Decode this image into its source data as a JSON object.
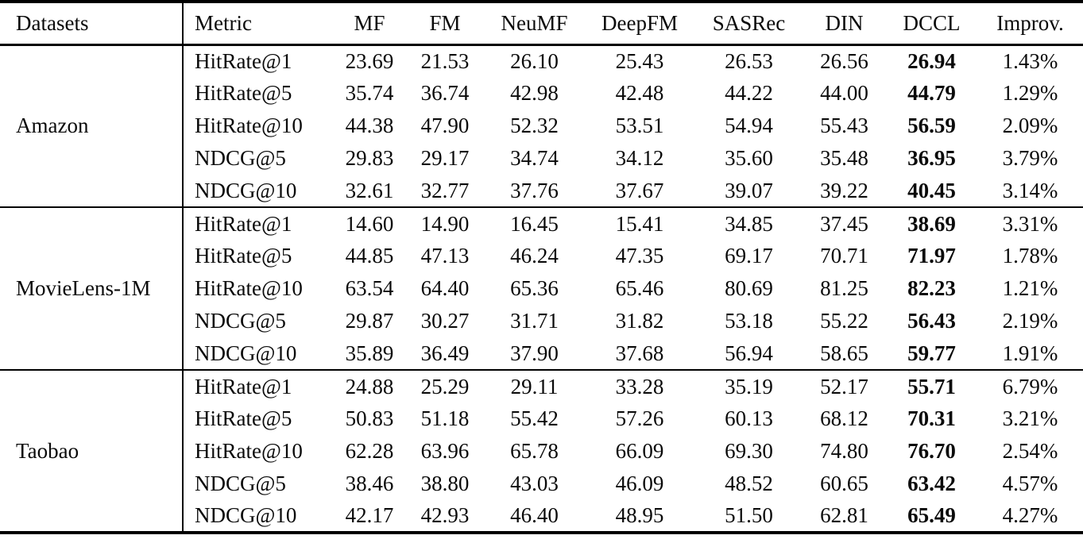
{
  "page": {
    "background_color": "#ffffff",
    "text_color": "#0a0a0a",
    "rule_color": "#000000"
  },
  "table": {
    "columns": [
      "Datasets",
      "Metric",
      "MF",
      "FM",
      "NeuMF",
      "DeepFM",
      "SASRec",
      "DIN",
      "DCCL",
      "Improv."
    ],
    "bold_column": "DCCL",
    "groups": [
      {
        "dataset": "Amazon",
        "rows": [
          {
            "metric": "HitRate@1",
            "values": [
              "23.69",
              "21.53",
              "26.10",
              "25.43",
              "26.53",
              "26.56",
              "26.94",
              "1.43%"
            ]
          },
          {
            "metric": "HitRate@5",
            "values": [
              "35.74",
              "36.74",
              "42.98",
              "42.48",
              "44.22",
              "44.00",
              "44.79",
              "1.29%"
            ]
          },
          {
            "metric": "HitRate@10",
            "values": [
              "44.38",
              "47.90",
              "52.32",
              "53.51",
              "54.94",
              "55.43",
              "56.59",
              "2.09%"
            ]
          },
          {
            "metric": "NDCG@5",
            "values": [
              "29.83",
              "29.17",
              "34.74",
              "34.12",
              "35.60",
              "35.48",
              "36.95",
              "3.79%"
            ]
          },
          {
            "metric": "NDCG@10",
            "values": [
              "32.61",
              "32.77",
              "37.76",
              "37.67",
              "39.07",
              "39.22",
              "40.45",
              "3.14%"
            ]
          }
        ]
      },
      {
        "dataset": "MovieLens-1M",
        "rows": [
          {
            "metric": "HitRate@1",
            "values": [
              "14.60",
              "14.90",
              "16.45",
              "15.41",
              "34.85",
              "37.45",
              "38.69",
              "3.31%"
            ]
          },
          {
            "metric": "HitRate@5",
            "values": [
              "44.85",
              "47.13",
              "46.24",
              "47.35",
              "69.17",
              "70.71",
              "71.97",
              "1.78%"
            ]
          },
          {
            "metric": "HitRate@10",
            "values": [
              "63.54",
              "64.40",
              "65.36",
              "65.46",
              "80.69",
              "81.25",
              "82.23",
              "1.21%"
            ]
          },
          {
            "metric": "NDCG@5",
            "values": [
              "29.87",
              "30.27",
              "31.71",
              "31.82",
              "53.18",
              "55.22",
              "56.43",
              "2.19%"
            ]
          },
          {
            "metric": "NDCG@10",
            "values": [
              "35.89",
              "36.49",
              "37.90",
              "37.68",
              "56.94",
              "58.65",
              "59.77",
              "1.91%"
            ]
          }
        ]
      },
      {
        "dataset": "Taobao",
        "rows": [
          {
            "metric": "HitRate@1",
            "values": [
              "24.88",
              "25.29",
              "29.11",
              "33.28",
              "35.19",
              "52.17",
              "55.71",
              "6.79%"
            ]
          },
          {
            "metric": "HitRate@5",
            "values": [
              "50.83",
              "51.18",
              "55.42",
              "57.26",
              "60.13",
              "68.12",
              "70.31",
              "3.21%"
            ]
          },
          {
            "metric": "HitRate@10",
            "values": [
              "62.28",
              "63.96",
              "65.78",
              "66.09",
              "69.30",
              "74.80",
              "76.70",
              "2.54%"
            ]
          },
          {
            "metric": "NDCG@5",
            "values": [
              "38.46",
              "38.80",
              "43.03",
              "46.09",
              "48.52",
              "60.65",
              "63.42",
              "4.57%"
            ]
          },
          {
            "metric": "NDCG@10",
            "values": [
              "42.17",
              "42.93",
              "46.40",
              "48.95",
              "51.50",
              "62.81",
              "65.49",
              "4.27%"
            ]
          }
        ]
      }
    ]
  }
}
